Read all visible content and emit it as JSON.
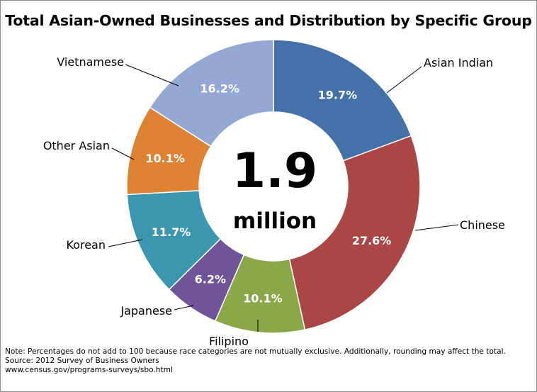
{
  "chart_data": {
    "type": "pie",
    "title": "Total Asian-Owned Businesses and Distribution by Specific Group",
    "center_value": "1.9",
    "center_unit": "million",
    "slices": [
      {
        "label": "Asian Indian",
        "value": 19.7,
        "value_label": "19.7%",
        "color": "#4472a8"
      },
      {
        "label": "Chinese",
        "value": 27.6,
        "value_label": "27.6%",
        "color": "#aa4644"
      },
      {
        "label": "Filipino",
        "value": 10.1,
        "value_label": "10.1%",
        "color": "#8aa84a"
      },
      {
        "label": "Japanese",
        "value": 6.2,
        "value_label": "6.2%",
        "color": "#6f5497"
      },
      {
        "label": "Korean",
        "value": 11.7,
        "value_label": "11.7%",
        "color": "#3b97b0"
      },
      {
        "label": "Other Asian",
        "value": 10.1,
        "value_label": "10.1%",
        "color": "#de8233"
      },
      {
        "label": "Vietnamese",
        "value": 16.2,
        "value_label": "16.2%",
        "color": "#93a8d2"
      }
    ]
  },
  "notes": {
    "note": "Note: Percentages do not add to 100 because race categories are not mutually exclusive. Additionally, rounding may affect the total.",
    "source": "Source: 2012 Survey of Business Owners",
    "url": "www.census.gov/programs-surveys/sbo.html"
  }
}
